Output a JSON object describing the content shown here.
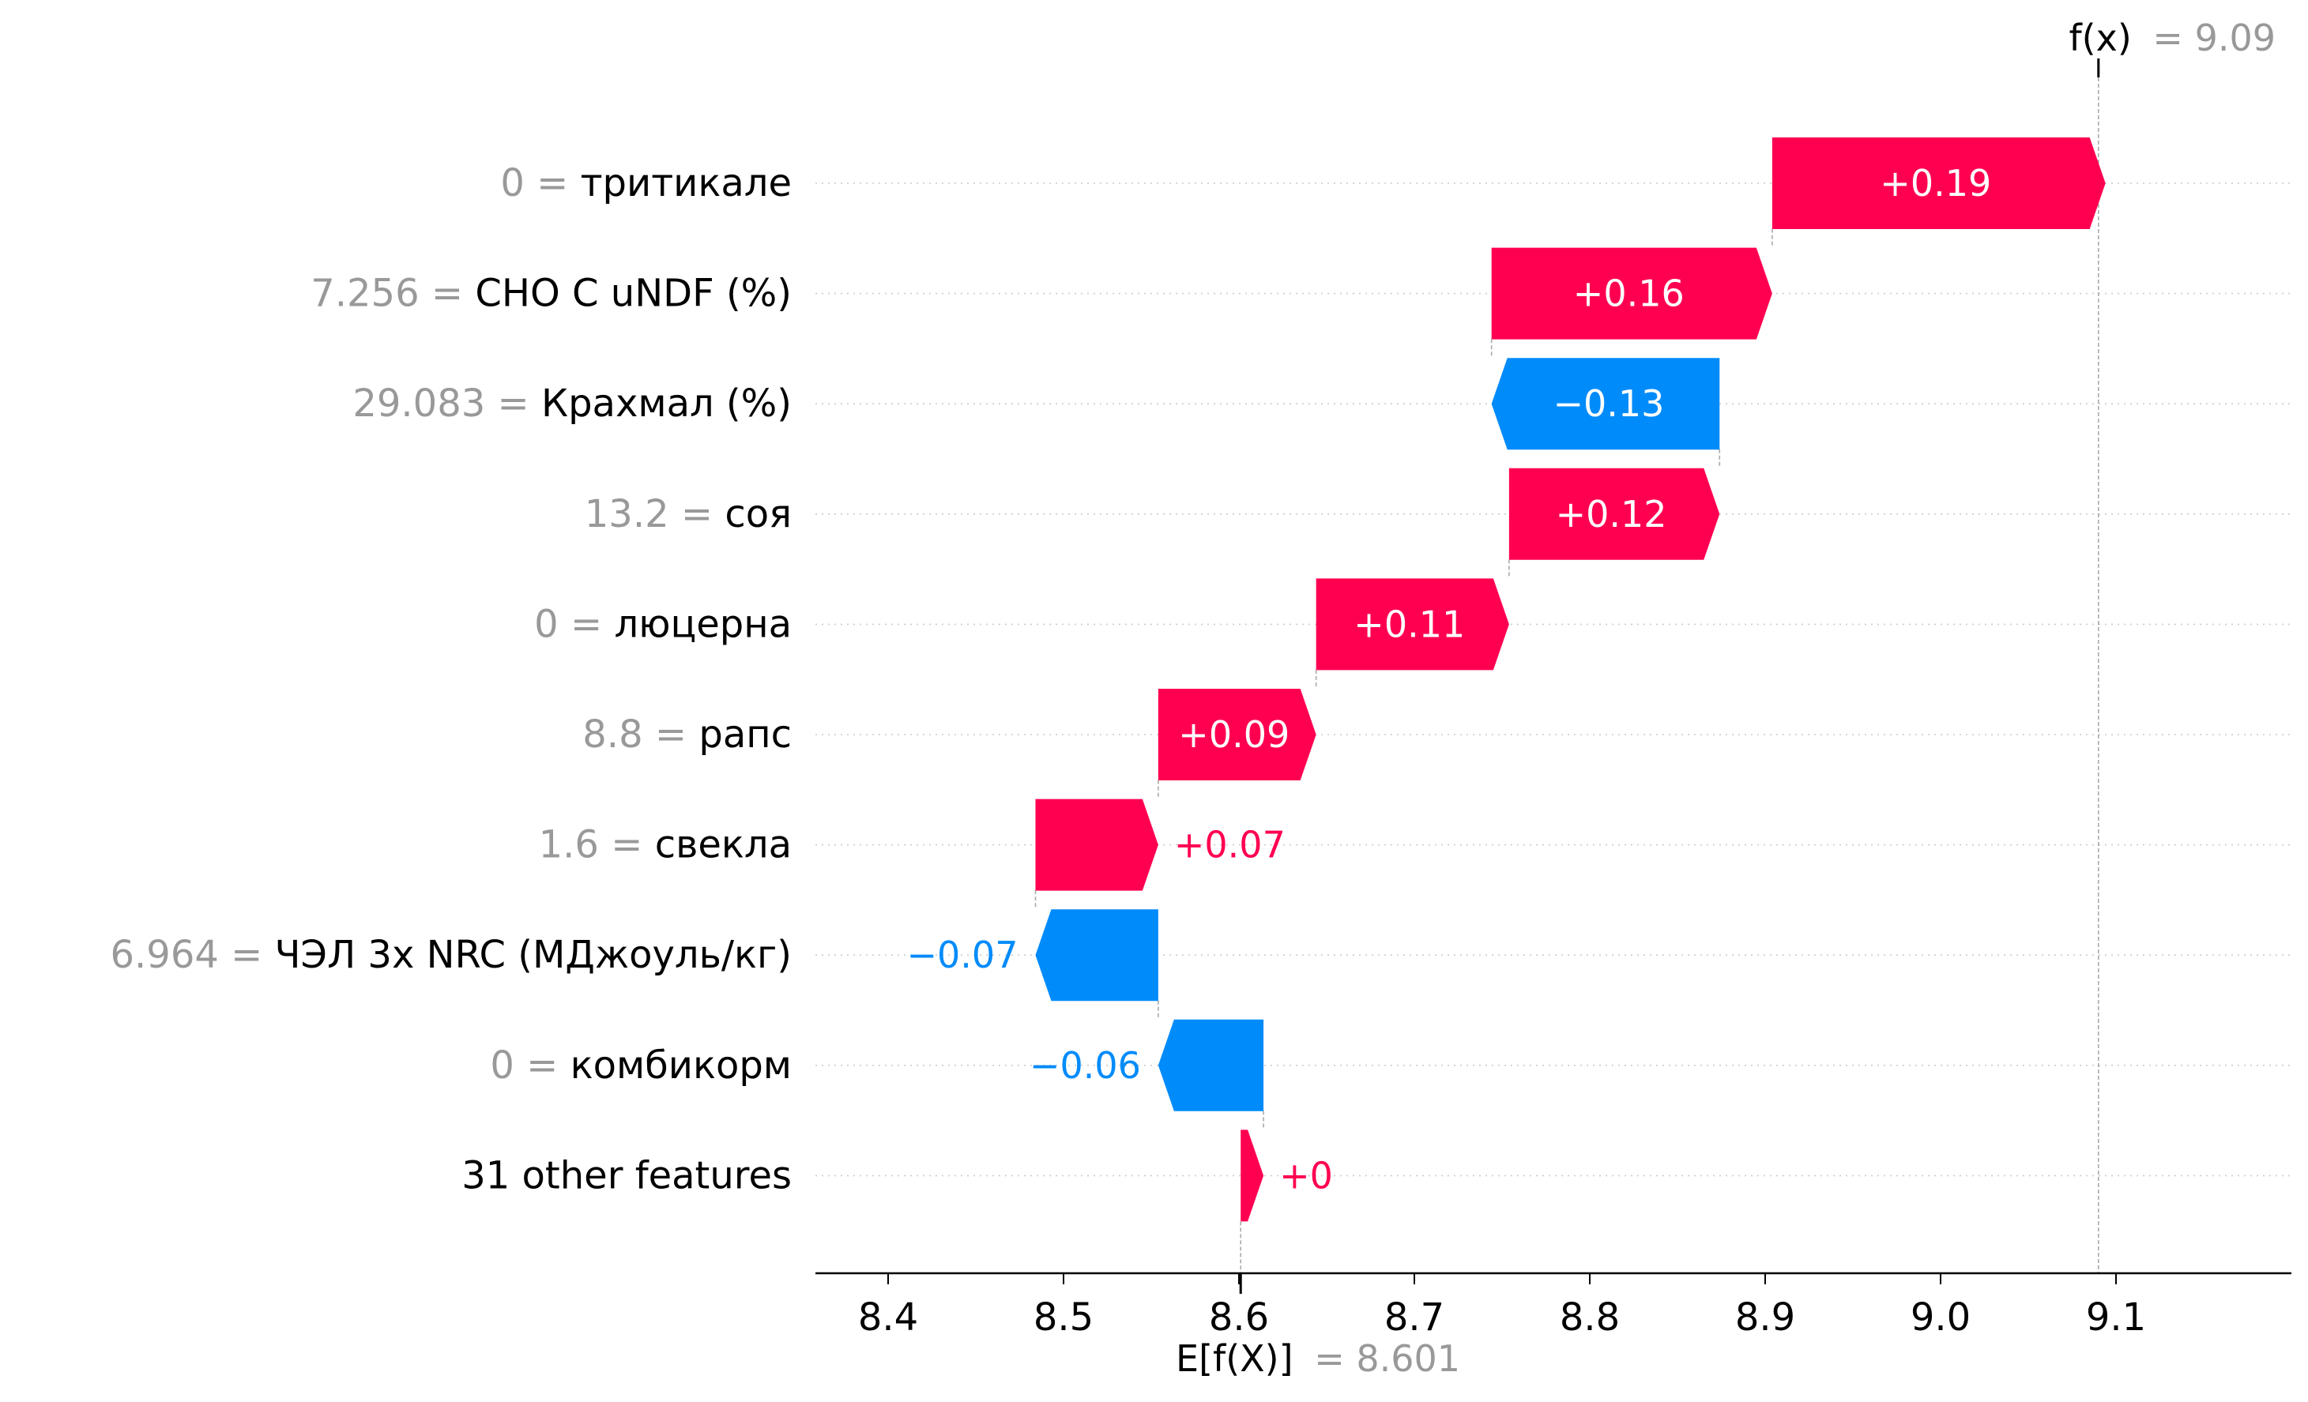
{
  "chart_data": {
    "type": "waterfall",
    "base_value": 8.601,
    "output_value": 9.09,
    "base_label": "E[f(X)]",
    "base_value_label": "= 8.601",
    "output_label": "f(x)",
    "output_value_label": "= 9.09",
    "x_ticks": [
      8.4,
      8.5,
      8.6,
      8.7,
      8.8,
      8.9,
      9.0,
      9.1
    ],
    "x_tick_labels": [
      "8.4",
      "8.5",
      "8.6",
      "8.7",
      "8.8",
      "8.9",
      "9.0",
      "9.1"
    ],
    "xlim": [
      8.355,
      9.195
    ],
    "features": [
      {
        "value": "0",
        "name": "тритикале",
        "shap": 0.19,
        "label": "+0.19"
      },
      {
        "value": "7.256",
        "name": "CHO C uNDF (%)",
        "shap": 0.16,
        "label": "+0.16"
      },
      {
        "value": "29.083",
        "name": "Крахмал (%)",
        "shap": -0.13,
        "label": "−0.13"
      },
      {
        "value": "13.2",
        "name": "соя",
        "shap": 0.12,
        "label": "+0.12"
      },
      {
        "value": "0",
        "name": "люцерна",
        "shap": 0.11,
        "label": "+0.11"
      },
      {
        "value": "8.8",
        "name": "рапс",
        "shap": 0.09,
        "label": "+0.09"
      },
      {
        "value": "1.6",
        "name": "свекла",
        "shap": 0.07,
        "label": "+0.07"
      },
      {
        "value": "6.964",
        "name": "ЧЭЛ 3x NRC (МДжоуль/кг)",
        "shap": -0.07,
        "label": "−0.07"
      },
      {
        "value": "0",
        "name": "комбикорм",
        "shap": -0.06,
        "label": "−0.06"
      },
      {
        "value": "",
        "name": "31 other features",
        "shap": 0.013,
        "label": "+0"
      }
    ],
    "colors": {
      "positive": "#ff0051",
      "negative": "#008bfb",
      "value_text": "#999999",
      "text": "#000000"
    }
  }
}
